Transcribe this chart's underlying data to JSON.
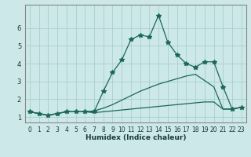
{
  "xlabel": "Humidex (Indice chaleur)",
  "bg_color": "#cce8e8",
  "grid_color": "#aacece",
  "line_color": "#1a6858",
  "x_values": [
    0,
    1,
    2,
    3,
    4,
    5,
    6,
    7,
    8,
    9,
    10,
    11,
    12,
    13,
    14,
    15,
    16,
    17,
    18,
    19,
    20,
    21,
    22,
    23
  ],
  "series_main": [
    1.3,
    1.2,
    1.1,
    1.2,
    1.3,
    1.3,
    1.3,
    1.3,
    2.45,
    3.5,
    4.2,
    5.35,
    5.6,
    5.5,
    6.7,
    5.2,
    4.5,
    4.0,
    3.8,
    4.1,
    4.1,
    2.7,
    1.45,
    1.55
  ],
  "series_mid": [
    1.3,
    1.2,
    1.1,
    1.2,
    1.3,
    1.3,
    1.3,
    1.35,
    1.5,
    1.7,
    1.95,
    2.2,
    2.45,
    2.65,
    2.85,
    3.0,
    3.15,
    3.3,
    3.4,
    3.05,
    2.7,
    1.45,
    1.45,
    1.55
  ],
  "series_low": [
    1.3,
    1.2,
    1.1,
    1.2,
    1.3,
    1.3,
    1.3,
    1.25,
    1.3,
    1.35,
    1.4,
    1.45,
    1.5,
    1.55,
    1.6,
    1.65,
    1.7,
    1.75,
    1.8,
    1.85,
    1.85,
    1.45,
    1.45,
    1.55
  ],
  "ylim_min": 0.7,
  "ylim_max": 7.3,
  "yticks": [
    1,
    2,
    3,
    4,
    5,
    6
  ],
  "marker": "*",
  "marker_size": 4.0,
  "line_width": 0.9,
  "xlabel_fontsize": 6.5,
  "tick_fontsize": 5.5
}
